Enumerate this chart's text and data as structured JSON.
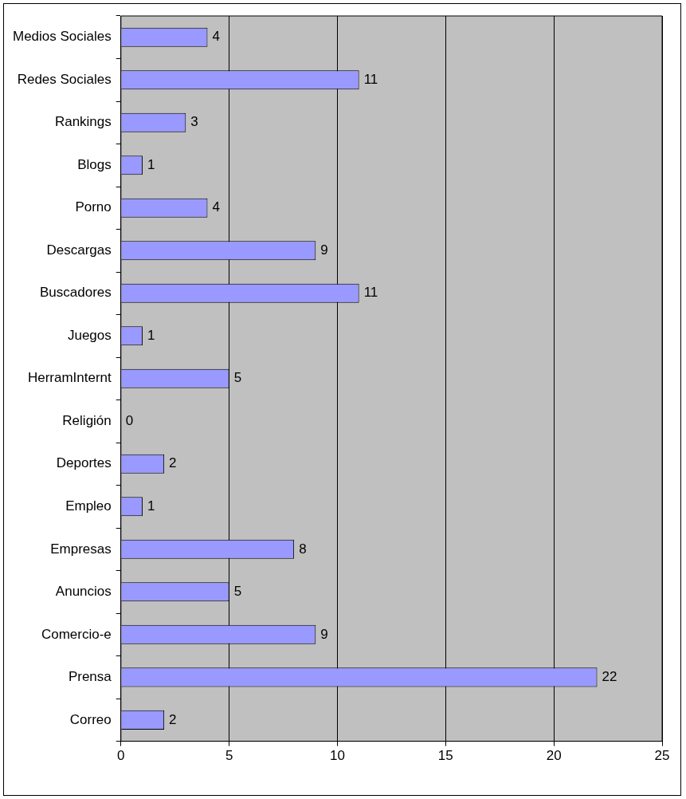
{
  "chart_data": {
    "type": "bar",
    "orientation": "horizontal",
    "categories": [
      "Medios Sociales",
      "Redes Sociales",
      "Rankings",
      "Blogs",
      "Porno",
      "Descargas",
      "Buscadores",
      "Juegos",
      "HerramInternt",
      "Religión",
      "Deportes",
      "Empleo",
      "Empresas",
      "Anuncios",
      "Comercio-e",
      "Prensa",
      "Correo"
    ],
    "values": [
      4,
      11,
      3,
      1,
      4,
      9,
      11,
      1,
      5,
      0,
      2,
      1,
      8,
      5,
      9,
      22,
      2
    ],
    "color": "#9999ff",
    "xlim": [
      0,
      25
    ],
    "xticks": [
      0,
      5,
      10,
      15,
      20,
      25
    ],
    "grid": "x",
    "legend": false,
    "data_labels": true
  }
}
